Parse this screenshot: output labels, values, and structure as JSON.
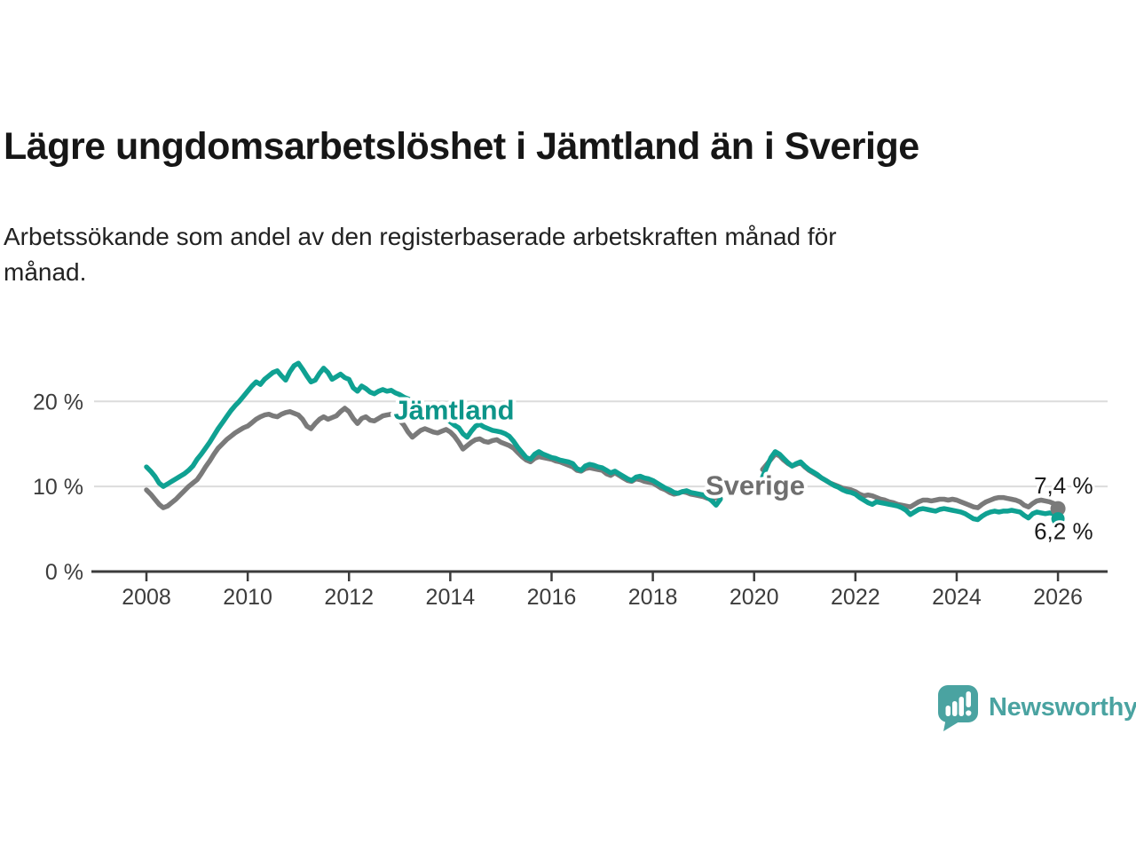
{
  "header": {
    "title": "Lägre ungdomsarbetslöshet i Jämtland än i Sverige",
    "subtitle_lines": [
      "Arbetssökande som andel av den registerbaserade arbetskraften månad för",
      "månad."
    ]
  },
  "chart_data": {
    "type": "line",
    "title": "Lägre ungdomsarbetslöshet i Jämtland än i Sverige",
    "subtitle": "Arbetssökande som andel av den registerbaserade arbetskraften månad för månad.",
    "unit": "%",
    "frequency": "monthly",
    "x_start": "2008-01",
    "x_end": "2026-01",
    "xlim": [
      2007.75,
      2026.4
    ],
    "ylim": [
      0,
      25.5
    ],
    "grid": true,
    "x_ticks": [
      "2008",
      "2010",
      "2012",
      "2014",
      "2016",
      "2018",
      "2020",
      "2022",
      "2024",
      "2026"
    ],
    "y_ticks": [
      {
        "value": 0,
        "label": "0 %"
      },
      {
        "value": 10,
        "label": "10 %"
      },
      {
        "value": 20,
        "label": "20 %"
      }
    ],
    "series_labels": [
      {
        "series": "Jämtland",
        "year": 2012.88,
        "value": 17.9
      },
      {
        "series": "Sverige",
        "year": 2019.04,
        "value": 9.0
      }
    ],
    "series": [
      {
        "name": "Sverige",
        "color": "#7a7a7a",
        "label_color": "#6f6f6f",
        "end_label": "7,4 %",
        "end_value": 7.4,
        "end_label_side": "above",
        "dot_radius": 8.5,
        "values": [
          9.6,
          9.1,
          8.5,
          7.9,
          7.5,
          7.7,
          8.1,
          8.5,
          9,
          9.5,
          10,
          10.4,
          10.8,
          11.5,
          12.3,
          13,
          13.8,
          14.5,
          15,
          15.5,
          15.9,
          16.3,
          16.6,
          16.9,
          17.1,
          17.5,
          17.9,
          18.2,
          18.4,
          18.5,
          18.3,
          18.2,
          18.5,
          18.7,
          18.8,
          18.6,
          18.4,
          17.9,
          17.1,
          16.8,
          17.4,
          17.9,
          18.2,
          17.9,
          18.1,
          18.3,
          18.8,
          19.2,
          18.8,
          18,
          17.4,
          18,
          18.2,
          17.8,
          17.7,
          18,
          18.3,
          18.4,
          18.5,
          18.2,
          17.8,
          17.2,
          16.4,
          15.8,
          16.2,
          16.6,
          16.8,
          16.6,
          16.4,
          16.3,
          16.5,
          16.7,
          16.4,
          15.9,
          15.2,
          14.4,
          14.8,
          15.2,
          15.5,
          15.6,
          15.3,
          15.2,
          15.4,
          15.5,
          15.2,
          15,
          14.8,
          14.5,
          14,
          13.5,
          13.1,
          12.9,
          13.3,
          13.5,
          13.4,
          13.3,
          13.2,
          13,
          12.9,
          12.7,
          12.5,
          12.3,
          11.9,
          11.8,
          12.1,
          12.2,
          12.1,
          12,
          11.9,
          11.5,
          11.3,
          11.6,
          11.3,
          11,
          10.7,
          10.6,
          10.9,
          10.8,
          10.6,
          10.5,
          10.4,
          10.1,
          9.8,
          9.6,
          9.3,
          9.1,
          9.2,
          9.4,
          9.3,
          9.1,
          9,
          8.9,
          8.8,
          8.6,
          8.5,
          8.7,
          8.6,
          null,
          null,
          null,
          null,
          null,
          null,
          null,
          null,
          null,
          12,
          12.6,
          13.2,
          13.8,
          13.6,
          13.1,
          12.7,
          12.4,
          12.6,
          12.8,
          12.3,
          11.9,
          11.6,
          11.3,
          11,
          10.7,
          10.4,
          10.2,
          10,
          9.8,
          9.7,
          9.6,
          9.4,
          9.1,
          8.9,
          9,
          8.9,
          8.7,
          8.5,
          8.4,
          8.2,
          8.1,
          7.9,
          7.8,
          7.7,
          7.6,
          7.9,
          8.2,
          8.4,
          8.4,
          8.3,
          8.4,
          8.5,
          8.5,
          8.4,
          8.5,
          8.4,
          8.2,
          8,
          7.8,
          7.6,
          7.5,
          7.9,
          8.2,
          8.4,
          8.6,
          8.7,
          8.7,
          8.6,
          8.5,
          8.4,
          8.2,
          7.8,
          7.6,
          8,
          8.3,
          8.4,
          8.3,
          8.2,
          8,
          7.4
        ]
      },
      {
        "name": "Jämtland",
        "color": "#0fa192",
        "label_color": "#0d9589",
        "end_label": "6,2 %",
        "end_value": 6.2,
        "end_label_side": "below",
        "dot_radius": 7.5,
        "values": [
          12.3,
          11.8,
          11.2,
          10.4,
          10,
          10.3,
          10.6,
          10.9,
          11.2,
          11.5,
          11.9,
          12.4,
          13.2,
          13.8,
          14.5,
          15.2,
          16,
          16.8,
          17.5,
          18.2,
          18.9,
          19.5,
          20,
          20.6,
          21.2,
          21.8,
          22.3,
          22,
          22.6,
          23,
          23.4,
          23.6,
          23,
          22.5,
          23.5,
          24.2,
          24.5,
          23.8,
          23,
          22.3,
          22.5,
          23.3,
          23.9,
          23.4,
          22.6,
          22.9,
          23.2,
          22.8,
          22.6,
          21.6,
          21.2,
          21.8,
          21.5,
          21.1,
          20.9,
          21.2,
          21.4,
          21.2,
          21.3,
          21,
          20.8,
          20.5,
          20.3,
          20,
          19.7,
          19.4,
          19.1,
          18.9,
          18.6,
          18.4,
          18.3,
          18,
          17.6,
          17.2,
          16.9,
          16.2,
          15.8,
          16.5,
          17.1,
          17.3,
          17,
          16.8,
          16.6,
          16.5,
          16.4,
          16.2,
          15.9,
          15.3,
          14.6,
          14,
          13.4,
          13.2,
          13.8,
          14.1,
          13.8,
          13.6,
          13.4,
          13.3,
          13.1,
          13,
          12.9,
          12.7,
          12.1,
          11.9,
          12.4,
          12.6,
          12.5,
          12.3,
          12.2,
          11.9,
          11.6,
          11.8,
          11.5,
          11.2,
          10.9,
          10.7,
          11.1,
          11.2,
          11,
          10.9,
          10.7,
          10.4,
          10.1,
          9.8,
          9.6,
          9.3,
          9.2,
          9.4,
          9.5,
          9.3,
          9.2,
          9.1,
          9,
          8.7,
          8.3,
          7.8,
          8.5,
          null,
          null,
          null,
          null,
          null,
          null,
          null,
          null,
          null,
          11.1,
          12.3,
          13.4,
          14.1,
          13.8,
          13.3,
          12.8,
          12.4,
          12.7,
          12.9,
          12.4,
          12,
          11.7,
          11.4,
          11,
          10.7,
          10.4,
          10.1,
          9.9,
          9.6,
          9.4,
          9.3,
          9.1,
          8.7,
          8.4,
          8.1,
          7.9,
          8.2,
          8.1,
          8,
          7.9,
          7.8,
          7.7,
          7.5,
          7.2,
          6.7,
          7,
          7.3,
          7.4,
          7.3,
          7.2,
          7.1,
          7.3,
          7.4,
          7.3,
          7.2,
          7.1,
          7,
          6.8,
          6.5,
          6.2,
          6.1,
          6.5,
          6.8,
          7,
          7.1,
          7,
          7.1,
          7.1,
          7.2,
          7.1,
          7,
          6.6,
          6.3,
          6.8,
          7,
          6.9,
          6.8,
          6.9,
          6.8,
          6.2
        ]
      }
    ],
    "colors": {
      "grid": "#dcdcdc",
      "axis": "#3c3c3c",
      "tick_text": "#3c3c3c",
      "end_label_text": "#1a1a1a"
    }
  },
  "branding": {
    "name": "Newsworthy",
    "color": "#4aa3a1"
  }
}
